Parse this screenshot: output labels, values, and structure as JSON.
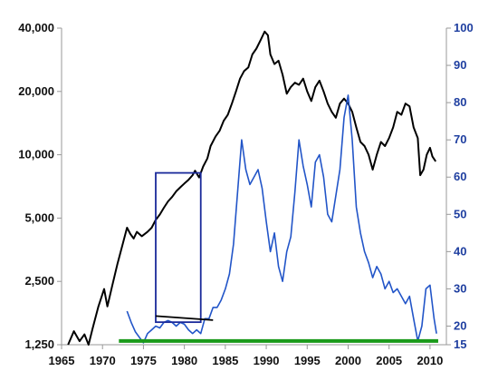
{
  "chart_data": {
    "type": "line",
    "title": "",
    "xlabel": "",
    "x_range": [
      1965,
      2012
    ],
    "x_ticks": [
      "1965",
      "1970",
      "1975",
      "1980",
      "1985",
      "1990",
      "1995",
      "2000",
      "2005",
      "2010"
    ],
    "left_axis": {
      "scale": "log",
      "range": [
        1250,
        40000
      ],
      "ticks": [
        1250,
        2500,
        5000,
        10000,
        20000,
        40000
      ],
      "tick_labels": [
        "1,250",
        "2,500",
        "5,000",
        "10,000",
        "20,000",
        "40,000"
      ],
      "label": "",
      "color": "#111111"
    },
    "right_axis": {
      "scale": "linear",
      "range": [
        15,
        100
      ],
      "ticks": [
        15,
        20,
        30,
        40,
        50,
        60,
        70,
        80,
        90,
        100
      ],
      "tick_labels": [
        "15",
        "20",
        "30",
        "40",
        "50",
        "60",
        "70",
        "80",
        "90",
        "100"
      ],
      "label": "",
      "color": "#1f3fa0"
    },
    "grid": false,
    "legend": "none",
    "series": [
      {
        "axis": "left",
        "color": "#000000",
        "points": [
          [
            1965.8,
            1250
          ],
          [
            1966.5,
            1450
          ],
          [
            1967.2,
            1300
          ],
          [
            1967.8,
            1400
          ],
          [
            1968.3,
            1250
          ],
          [
            1968.8,
            1500
          ],
          [
            1969.5,
            1900
          ],
          [
            1970.2,
            2300
          ],
          [
            1970.6,
            1900
          ],
          [
            1971.2,
            2400
          ],
          [
            1971.8,
            3000
          ],
          [
            1972.5,
            3800
          ],
          [
            1973.0,
            4500
          ],
          [
            1973.4,
            4200
          ],
          [
            1973.8,
            4000
          ],
          [
            1974.2,
            4300
          ],
          [
            1974.8,
            4100
          ],
          [
            1975.5,
            4300
          ],
          [
            1976.0,
            4500
          ],
          [
            1976.5,
            4900
          ],
          [
            1977.0,
            5200
          ],
          [
            1977.5,
            5600
          ],
          [
            1978.0,
            6000
          ],
          [
            1978.5,
            6300
          ],
          [
            1979.0,
            6700
          ],
          [
            1979.5,
            7000
          ],
          [
            1980.0,
            7300
          ],
          [
            1980.5,
            7600
          ],
          [
            1981.0,
            8000
          ],
          [
            1981.3,
            8400
          ],
          [
            1981.8,
            7800
          ],
          [
            1982.3,
            8800
          ],
          [
            1982.8,
            9600
          ],
          [
            1983.2,
            11000
          ],
          [
            1983.8,
            12200
          ],
          [
            1984.3,
            13000
          ],
          [
            1984.8,
            14500
          ],
          [
            1985.3,
            15500
          ],
          [
            1985.8,
            17500
          ],
          [
            1986.3,
            20000
          ],
          [
            1986.8,
            23000
          ],
          [
            1987.3,
            25000
          ],
          [
            1987.8,
            26000
          ],
          [
            1988.3,
            30000
          ],
          [
            1988.8,
            32000
          ],
          [
            1989.3,
            35000
          ],
          [
            1989.8,
            38500
          ],
          [
            1990.2,
            37000
          ],
          [
            1990.5,
            30000
          ],
          [
            1991.0,
            27000
          ],
          [
            1991.5,
            28000
          ],
          [
            1992.0,
            24000
          ],
          [
            1992.5,
            19500
          ],
          [
            1993.0,
            21000
          ],
          [
            1993.5,
            22000
          ],
          [
            1994.0,
            21500
          ],
          [
            1994.5,
            23000
          ],
          [
            1995.0,
            20000
          ],
          [
            1995.5,
            18000
          ],
          [
            1996.0,
            21000
          ],
          [
            1996.5,
            22500
          ],
          [
            1997.0,
            20000
          ],
          [
            1997.5,
            17500
          ],
          [
            1998.0,
            16000
          ],
          [
            1998.5,
            15000
          ],
          [
            1999.0,
            17500
          ],
          [
            1999.5,
            18500
          ],
          [
            2000.0,
            17500
          ],
          [
            2000.5,
            16000
          ],
          [
            2001.0,
            13500
          ],
          [
            2001.5,
            11500
          ],
          [
            2002.0,
            11000
          ],
          [
            2002.5,
            10000
          ],
          [
            2003.0,
            8500
          ],
          [
            2003.5,
            10000
          ],
          [
            2004.0,
            11500
          ],
          [
            2004.5,
            11000
          ],
          [
            2005.0,
            12000
          ],
          [
            2005.5,
            13500
          ],
          [
            2006.0,
            16000
          ],
          [
            2006.5,
            15500
          ],
          [
            2007.0,
            17500
          ],
          [
            2007.5,
            17000
          ],
          [
            2008.0,
            13500
          ],
          [
            2008.5,
            12000
          ],
          [
            2008.8,
            8000
          ],
          [
            2009.2,
            8500
          ],
          [
            2009.6,
            10000
          ],
          [
            2010.0,
            10800
          ],
          [
            2010.3,
            9800
          ],
          [
            2010.7,
            9300
          ]
        ]
      },
      {
        "axis": "right",
        "color": "#2255c8",
        "points": [
          [
            1973.0,
            24
          ],
          [
            1973.5,
            21
          ],
          [
            1974.0,
            18.5
          ],
          [
            1974.5,
            17
          ],
          [
            1975.0,
            15.5
          ],
          [
            1975.5,
            18
          ],
          [
            1976.0,
            19
          ],
          [
            1976.5,
            20
          ],
          [
            1977.0,
            19.5
          ],
          [
            1977.5,
            21
          ],
          [
            1978.0,
            21.5
          ],
          [
            1978.5,
            21
          ],
          [
            1979.0,
            20
          ],
          [
            1979.5,
            21
          ],
          [
            1980.0,
            20.5
          ],
          [
            1980.5,
            19
          ],
          [
            1981.0,
            18
          ],
          [
            1981.5,
            19
          ],
          [
            1982.0,
            18
          ],
          [
            1982.5,
            22
          ],
          [
            1983.0,
            22
          ],
          [
            1983.5,
            25
          ],
          [
            1984.0,
            25
          ],
          [
            1984.5,
            27
          ],
          [
            1985.0,
            30
          ],
          [
            1985.5,
            34
          ],
          [
            1986.0,
            42
          ],
          [
            1986.5,
            56
          ],
          [
            1987.0,
            70
          ],
          [
            1987.5,
            62
          ],
          [
            1988.0,
            58
          ],
          [
            1988.5,
            60
          ],
          [
            1989.0,
            62
          ],
          [
            1989.5,
            57
          ],
          [
            1990.0,
            48
          ],
          [
            1990.5,
            40
          ],
          [
            1991.0,
            45
          ],
          [
            1991.5,
            36
          ],
          [
            1992.0,
            32
          ],
          [
            1992.5,
            40
          ],
          [
            1993.0,
            44
          ],
          [
            1993.5,
            56
          ],
          [
            1994.0,
            70
          ],
          [
            1994.5,
            63
          ],
          [
            1995.0,
            58
          ],
          [
            1995.5,
            52
          ],
          [
            1996.0,
            64
          ],
          [
            1996.5,
            66
          ],
          [
            1997.0,
            60
          ],
          [
            1997.5,
            50
          ],
          [
            1998.0,
            48
          ],
          [
            1998.5,
            55
          ],
          [
            1999.0,
            62
          ],
          [
            1999.5,
            76
          ],
          [
            2000.0,
            82
          ],
          [
            2000.5,
            70
          ],
          [
            2001.0,
            52
          ],
          [
            2001.5,
            45
          ],
          [
            2002.0,
            40
          ],
          [
            2002.5,
            37
          ],
          [
            2003.0,
            33
          ],
          [
            2003.5,
            36
          ],
          [
            2004.0,
            34
          ],
          [
            2004.5,
            30
          ],
          [
            2005.0,
            32
          ],
          [
            2005.5,
            29
          ],
          [
            2006.0,
            30
          ],
          [
            2006.5,
            28
          ],
          [
            2007.0,
            26
          ],
          [
            2007.5,
            28
          ],
          [
            2008.0,
            22
          ],
          [
            2008.5,
            16
          ],
          [
            2009.0,
            20
          ],
          [
            2009.5,
            30
          ],
          [
            2010.0,
            31
          ],
          [
            2010.5,
            22
          ],
          [
            2010.8,
            18
          ]
        ]
      }
    ],
    "annotations": [
      {
        "shape": "rect",
        "color": "#1a2a9a",
        "x": [
          1976.5,
          1982.0
        ],
        "y_left": [
          1600,
          8200
        ]
      },
      {
        "shape": "line",
        "color": "#000000",
        "axis": "right",
        "from": [
          1976.5,
          22.7
        ],
        "to": [
          1983.5,
          21.6
        ]
      },
      {
        "shape": "line",
        "color": "#1a9a1a",
        "axis": "right",
        "from": [
          1972.0,
          16.0
        ],
        "to": [
          2011.0,
          16.0
        ]
      }
    ]
  }
}
